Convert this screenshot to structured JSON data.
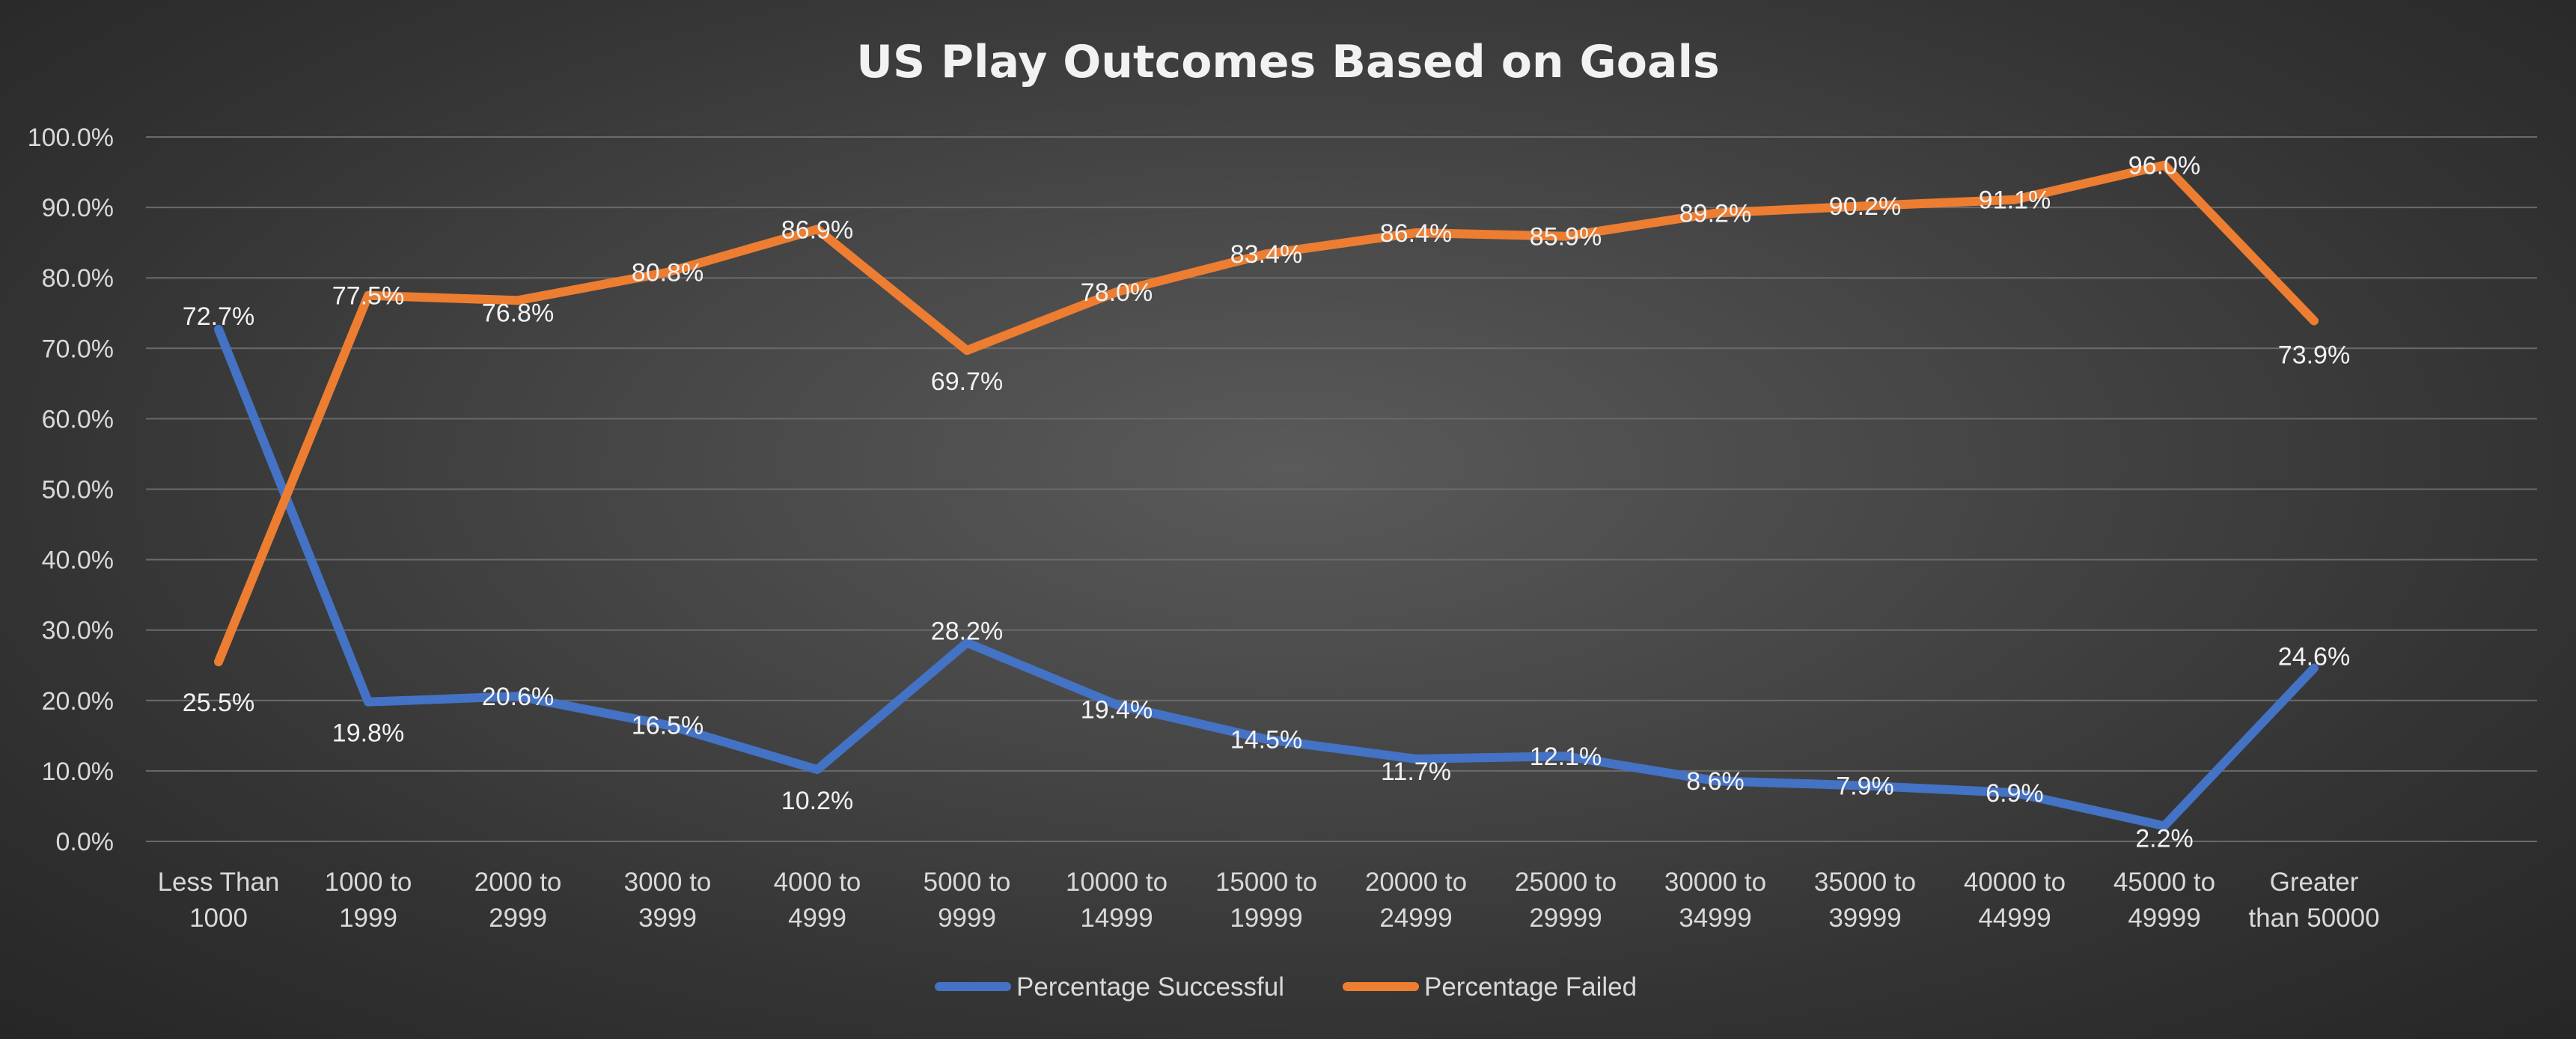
{
  "chart_data": {
    "type": "line",
    "title": "US Play Outcomes Based on Goals",
    "xlabel": "",
    "ylabel": "",
    "ylim": [
      0,
      100
    ],
    "yticks": [
      "0.0%",
      "10.0%",
      "20.0%",
      "30.0%",
      "40.0%",
      "50.0%",
      "60.0%",
      "70.0%",
      "80.0%",
      "90.0%",
      "100.0%"
    ],
    "categories": [
      [
        "Less Than",
        "1000"
      ],
      [
        "1000 to",
        "1999"
      ],
      [
        "2000 to",
        "2999"
      ],
      [
        "3000 to",
        "3999"
      ],
      [
        "4000 to",
        "4999"
      ],
      [
        "5000 to",
        "9999"
      ],
      [
        "10000 to",
        "14999"
      ],
      [
        "15000 to",
        "19999"
      ],
      [
        "20000 to",
        "24999"
      ],
      [
        "25000 to",
        "29999"
      ],
      [
        "30000 to",
        "34999"
      ],
      [
        "35000 to",
        "39999"
      ],
      [
        "40000 to",
        "44999"
      ],
      [
        "45000 to",
        "49999"
      ],
      [
        "Greater",
        "than 50000"
      ]
    ],
    "grid": true,
    "legend_position": "bottom",
    "series": [
      {
        "name": "Percentage Successful",
        "color": "#4472C4",
        "values": [
          72.7,
          19.8,
          20.6,
          16.5,
          10.2,
          28.2,
          19.4,
          14.5,
          11.7,
          12.1,
          8.6,
          7.9,
          6.9,
          2.2,
          24.6
        ],
        "labels": [
          "72.7%",
          "19.8%",
          "20.6%",
          "16.5%",
          "10.2%",
          "28.2%",
          "19.4%",
          "14.5%",
          "11.7%",
          "12.1%",
          "8.6%",
          "7.9%",
          "6.9%",
          "2.2%",
          "24.6%"
        ]
      },
      {
        "name": "Percentage Failed",
        "color": "#ED7D31",
        "values": [
          25.5,
          77.5,
          76.8,
          80.8,
          86.9,
          69.7,
          78.0,
          83.4,
          86.4,
          85.9,
          89.2,
          90.2,
          91.1,
          96.0,
          73.9
        ],
        "labels": [
          "25.5%",
          "77.5%",
          "76.8%",
          "80.8%",
          "86.9%",
          "69.7%",
          "78.0%",
          "83.4%",
          "86.4%",
          "85.9%",
          "89.2%",
          "90.2%",
          "91.1%",
          "96.0%",
          "73.9%"
        ]
      }
    ]
  }
}
